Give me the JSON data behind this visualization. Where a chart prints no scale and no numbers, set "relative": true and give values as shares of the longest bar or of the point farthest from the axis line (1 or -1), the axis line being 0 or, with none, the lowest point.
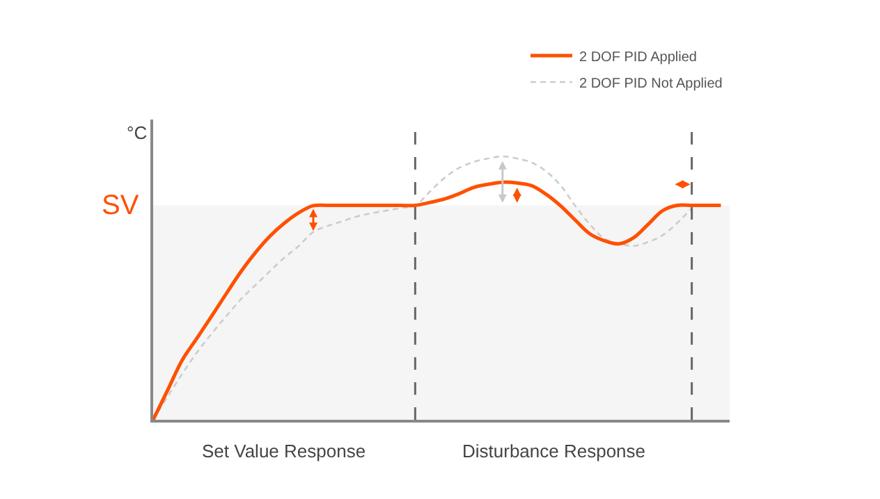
{
  "chart_data": {
    "type": "line",
    "relative": true,
    "ylabel": "°C",
    "categories": [
      null,
      null,
      null,
      null,
      null,
      null,
      null,
      null,
      null,
      null,
      null,
      null,
      null,
      null,
      null,
      null,
      null,
      null,
      null,
      null,
      null,
      null,
      null,
      null,
      null,
      null,
      null,
      null,
      null,
      null,
      null,
      null,
      null,
      null,
      null,
      null,
      null,
      null,
      null,
      null
    ],
    "series": [
      {
        "name": "2 DOF PID Applied",
        "color": "#ff5000",
        "line_style": "solid",
        "values": [
          0,
          0.113,
          0.227,
          0.309,
          0.392,
          0.477,
          0.56,
          0.633,
          0.696,
          0.746,
          0.786,
          0.813,
          0.814,
          0.814,
          0.814,
          0.814,
          0.814,
          0.814,
          0.814,
          0.825,
          0.838,
          0.858,
          0.882,
          0.894,
          0.902,
          0.899,
          0.889,
          0.856,
          0.812,
          0.758,
          0.706,
          0.68,
          0.668,
          0.691,
          0.742,
          0.794,
          0.814,
          0.814,
          0.814,
          0.814
        ]
      },
      {
        "name": "2 DOF PID Not Applied",
        "color": "#cccccc",
        "line_style": "dashed",
        "values": [
          0,
          0.088,
          0.175,
          0.255,
          0.326,
          0.392,
          0.456,
          0.51,
          0.563,
          0.615,
          0.66,
          0.713,
          0.736,
          0.754,
          0.772,
          0.784,
          0.794,
          0.804,
          0.814,
          0.866,
          0.918,
          0.956,
          0.979,
          0.992,
          1.0,
          0.992,
          0.977,
          0.943,
          0.889,
          0.812,
          0.742,
          0.688,
          0.67,
          0.66,
          0.675,
          0.701,
          0.747,
          0.804,
          null,
          null
        ]
      }
    ],
    "bands": [
      {
        "axis": "y",
        "from": 0,
        "to": 0.814,
        "label": "SV",
        "color": "#f5f5f5"
      }
    ],
    "annotations": [
      "Set Value Response",
      "Disturbance Response"
    ],
    "marker": "none",
    "legend": "top right"
  }
}
